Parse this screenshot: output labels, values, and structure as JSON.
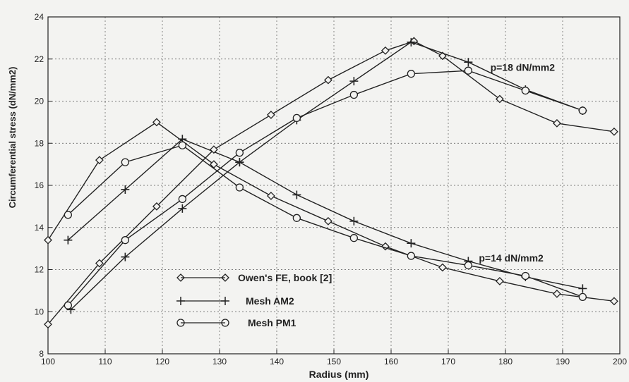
{
  "chart_data": {
    "type": "line",
    "title": "",
    "xlabel": "Radius (mm)",
    "ylabel": "Circumferential stress (dN/mm2)",
    "xlim": [
      100,
      200
    ],
    "ylim": [
      8,
      24
    ],
    "xticks": [
      100,
      110,
      120,
      130,
      140,
      150,
      160,
      170,
      180,
      190,
      200
    ],
    "yticks": [
      8,
      10,
      12,
      14,
      16,
      18,
      20,
      22,
      24
    ],
    "grid": true,
    "legend": "bottom-left",
    "annotations": [
      {
        "text": "p=18 dN/mm2",
        "x": 183,
        "y": 21.6
      },
      {
        "text": "p=14 dN/mm2",
        "x": 181,
        "y": 12.55
      }
    ],
    "series": [
      {
        "name": "Owen's FE, book [2]",
        "marker": "diamond",
        "group": "p=14",
        "x": [
          100,
          109,
          119,
          129,
          139,
          149,
          159,
          169,
          179,
          189,
          199
        ],
        "y": [
          13.4,
          17.2,
          19.0,
          17.0,
          15.5,
          14.3,
          13.1,
          12.1,
          11.45,
          10.85,
          10.5
        ]
      },
      {
        "name": "Mesh AM2",
        "marker": "plus",
        "group": "p=14",
        "x": [
          103.5,
          113.5,
          123.5,
          133.5,
          143.5,
          153.5,
          163.5,
          173.5,
          183.5,
          193.5
        ],
        "y": [
          13.4,
          15.8,
          18.2,
          17.1,
          15.55,
          14.3,
          13.25,
          12.4,
          11.65,
          11.1
        ]
      },
      {
        "name": "Mesh PM1",
        "marker": "circle",
        "group": "p=14",
        "x": [
          103.5,
          113.5,
          123.5,
          133.5,
          143.5,
          153.5,
          163.5,
          173.5,
          183.5,
          193.5
        ],
        "y": [
          14.6,
          17.1,
          17.9,
          15.9,
          14.45,
          13.5,
          12.65,
          12.2,
          11.7,
          10.7
        ]
      },
      {
        "name": "Owen's FE, book [2]",
        "marker": "diamond",
        "group": "p=18",
        "x": [
          100,
          109,
          119,
          129,
          139,
          149,
          159,
          164,
          169,
          179,
          189,
          199
        ],
        "y": [
          9.4,
          12.3,
          15.0,
          17.7,
          19.35,
          21.0,
          22.4,
          22.85,
          22.15,
          20.1,
          18.95,
          18.55
        ]
      },
      {
        "name": "Mesh AM2",
        "marker": "plus",
        "group": "p=18",
        "x": [
          104,
          113.5,
          123.5,
          133.5,
          143.5,
          153.5,
          163.5,
          173.5,
          183.5,
          193.5
        ],
        "y": [
          10.1,
          12.6,
          14.9,
          17.1,
          19.1,
          20.95,
          22.8,
          21.85,
          20.55,
          19.55
        ]
      },
      {
        "name": "Mesh PM1",
        "marker": "circle",
        "group": "p=18",
        "x": [
          103.5,
          113.5,
          123.5,
          133.5,
          143.5,
          153.5,
          163.5,
          173.5,
          183.5,
          193.5
        ],
        "y": [
          10.3,
          13.4,
          15.35,
          17.55,
          19.2,
          20.3,
          21.3,
          21.45,
          20.5,
          19.55
        ]
      }
    ]
  },
  "legend": {
    "items": [
      {
        "label": "Owen's FE, book [2]",
        "marker": "diamond"
      },
      {
        "label": "Mesh AM2",
        "marker": "plus"
      },
      {
        "label": "Mesh PM1",
        "marker": "circle"
      }
    ]
  }
}
